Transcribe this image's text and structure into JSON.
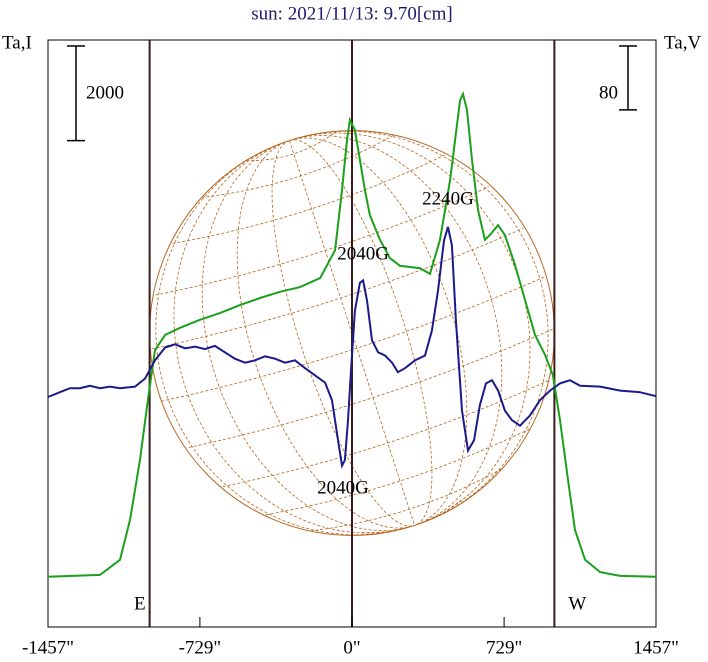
{
  "chart_data": {
    "type": "line",
    "title": "sun: 2021/11/13: 9.70[cm]",
    "y_label": "Ta,I",
    "y2_label": "Ta,V",
    "xlim": [
      -1457,
      1457
    ],
    "xticks": [
      {
        "value": -1457,
        "label": "-1457\""
      },
      {
        "value": -729,
        "label": "-729\""
      },
      {
        "value": 0,
        "label": "0\""
      },
      {
        "value": 729,
        "label": "729\""
      },
      {
        "value": 1457,
        "label": "1457\""
      }
    ],
    "ylim": [
      -1000,
      11400
    ],
    "y2lim": [
      -300,
      435
    ],
    "y_scale_bar": 2000,
    "y2_scale_bar": 80,
    "markers": [
      {
        "label": "E",
        "x": -970
      },
      {
        "label": "W",
        "x": 970
      }
    ],
    "center_line": 0,
    "annotations": [
      {
        "text": "2040G",
        "x": 53,
        "y": 6858
      },
      {
        "text": "2240G",
        "x": 460,
        "y": 8020
      },
      {
        "text": "2040G",
        "x": -43,
        "y": 1915
      }
    ],
    "series": [
      {
        "name": "I",
        "color": "#1aa01a",
        "axis": "y",
        "x": [
          -1457,
          -1208,
          -1112,
          -1064,
          -1016,
          -978,
          -944,
          -896,
          -824,
          -729,
          -633,
          -537,
          -441,
          -345,
          -249,
          -153,
          -81,
          -48,
          -24,
          -10,
          14,
          38,
          62,
          86,
          134,
          182,
          230,
          326,
          374,
          422,
          470,
          494,
          518,
          532,
          551,
          575,
          604,
          637,
          661,
          700,
          733,
          781,
          829,
          877,
          925,
          963,
          997,
          1035,
          1069,
          1117,
          1189,
          1285,
          1457
        ],
        "values": [
          60,
          100,
          420,
          1260,
          2530,
          3800,
          4850,
          5170,
          5320,
          5490,
          5630,
          5800,
          5950,
          6080,
          6180,
          6370,
          6960,
          8230,
          9290,
          9710,
          9500,
          8870,
          8230,
          7700,
          7180,
          6790,
          6630,
          6580,
          6460,
          7180,
          8440,
          9290,
          10130,
          10260,
          9920,
          8870,
          7810,
          7180,
          7280,
          7490,
          7280,
          6650,
          5910,
          5170,
          4750,
          4320,
          3370,
          2110,
          1050,
          420,
          160,
          80,
          60
        ]
      },
      {
        "name": "V",
        "color": "#1a1a8c",
        "axis": "y2",
        "x": [
          -1457,
          -1400,
          -1352,
          -1304,
          -1256,
          -1208,
          -1160,
          -1112,
          -1040,
          -992,
          -944,
          -896,
          -848,
          -800,
          -752,
          -705,
          -657,
          -609,
          -561,
          -513,
          -465,
          -417,
          -369,
          -321,
          -273,
          -225,
          -177,
          -129,
          -96,
          -67,
          -48,
          -34,
          -19,
          -5,
          14,
          38,
          53,
          72,
          96,
          125,
          158,
          192,
          220,
          254,
          302,
          350,
          383,
          412,
          441,
          460,
          479,
          498,
          527,
          556,
          585,
          613,
          642,
          671,
          700,
          733,
          767,
          805,
          853,
          901,
          949,
          997,
          1045,
          1093,
          1189,
          1285,
          1380,
          1457
        ],
        "values": [
          -12,
          -6,
          -1,
          -1,
          2,
          -1,
          1,
          -1,
          1,
          11,
          34,
          50,
          54,
          49,
          51,
          48,
          52,
          44,
          36,
          31,
          34,
          39,
          36,
          31,
          34,
          24,
          15,
          6,
          -16,
          -66,
          -98,
          -91,
          -41,
          21,
          96,
          131,
          134,
          109,
          59,
          44,
          40,
          31,
          19,
          24,
          34,
          40,
          71,
          121,
          184,
          201,
          178,
          84,
          -29,
          -79,
          -66,
          -22,
          5,
          9,
          -4,
          -29,
          -41,
          -48,
          -35,
          -16,
          -4,
          5,
          9,
          2,
          1,
          -4,
          -6,
          -11
        ]
      }
    ]
  }
}
